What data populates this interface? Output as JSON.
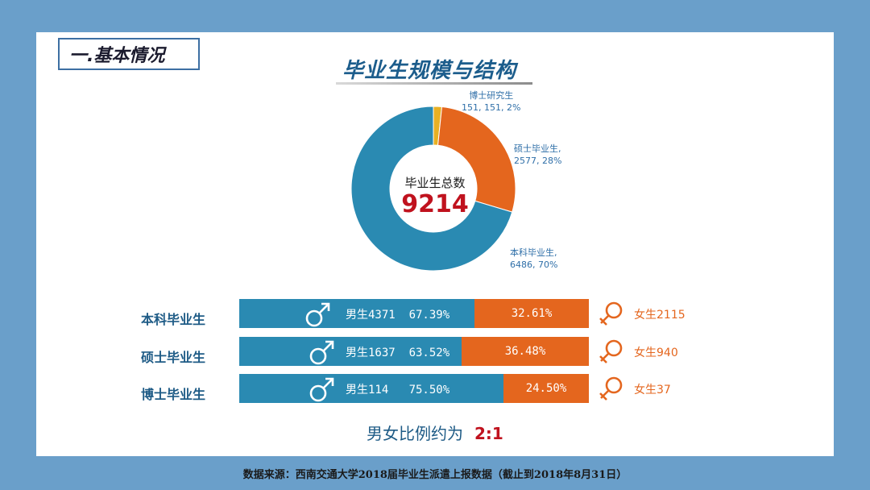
{
  "section": {
    "title": "一.基本情况"
  },
  "main_title": "毕业生规模与结构",
  "donut": {
    "center_label": "毕业生总数",
    "center_value": "9214",
    "slices": [
      {
        "name": "博士研究生",
        "line2": "151, 151, 2%",
        "value": 151,
        "color": "#e8b023"
      },
      {
        "name": "硕士毕业生,",
        "line2": "2577, 28%",
        "value": 2577,
        "color": "#e4661e"
      },
      {
        "name": "本科毕业生,",
        "line2": "6486, 70%",
        "value": 6486,
        "color": "#2a8ab2"
      }
    ]
  },
  "gender_rows": [
    {
      "label": "本科毕业生",
      "male_text": "男生4371  67.39%",
      "female_pct": "32.61%",
      "female_text": "女生2115",
      "male_share": 67.39
    },
    {
      "label": "硕士毕业生",
      "male_text": "男生1637  63.52%",
      "female_pct": "36.48%",
      "female_text": "女生940",
      "male_share": 63.52
    },
    {
      "label": "博士毕业生",
      "male_text": "男生114   75.50%",
      "female_pct": "24.50%",
      "female_text": "女生37",
      "male_share": 75.5
    }
  ],
  "ratio": {
    "label": "男女比例约为",
    "value": "2:1"
  },
  "source": "数据来源：西南交通大学2018届毕业生派遣上报数据（截止到2018年8月31日）",
  "chart_data": [
    {
      "type": "pie",
      "categories": [
        "博士研究生",
        "硕士毕业生",
        "本科毕业生"
      ],
      "values": [
        151,
        2577,
        6486
      ],
      "percent": [
        2,
        28,
        70
      ],
      "total": 9214
    },
    {
      "type": "bar",
      "categories": [
        "本科毕业生",
        "硕士毕业生",
        "博士毕业生"
      ],
      "series": [
        {
          "name": "男生",
          "values": [
            67.39,
            63.52,
            75.5
          ],
          "counts": [
            4371,
            1637,
            114
          ]
        },
        {
          "name": "女生",
          "values": [
            32.61,
            36.48,
            24.5
          ],
          "counts": [
            2115,
            940,
            37
          ]
        }
      ]
    }
  ]
}
